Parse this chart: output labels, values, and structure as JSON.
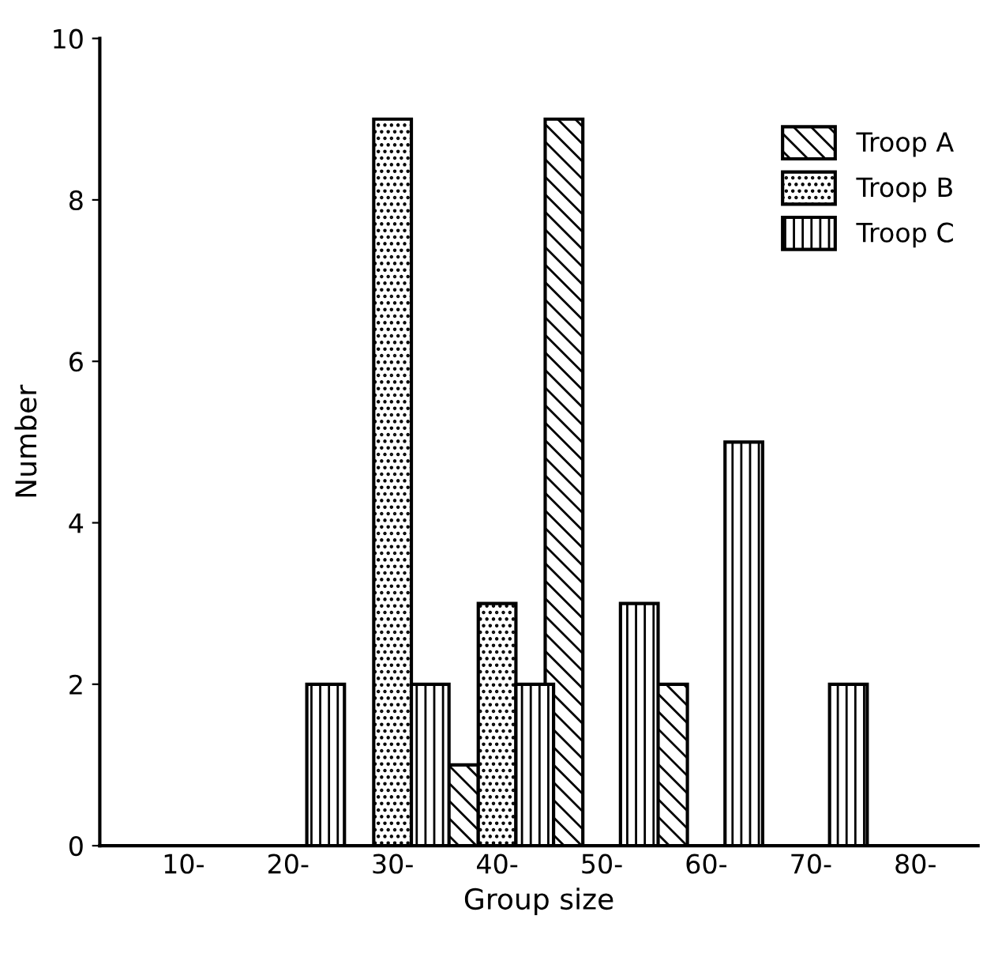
{
  "chart_data": {
    "type": "bar",
    "xlabel": "Group size",
    "ylabel": "Number",
    "categories": [
      "10-",
      "20-",
      "30-",
      "40-",
      "50-",
      "60-",
      "70-",
      "80-"
    ],
    "series": [
      {
        "name": "Troop A",
        "color": "#000000",
        "values": [
          null,
          null,
          null,
          1,
          9,
          2,
          null,
          null
        ]
      },
      {
        "name": "Troop B",
        "color": "#000000",
        "values": [
          null,
          null,
          9,
          3,
          null,
          null,
          null,
          null
        ]
      },
      {
        "name": "Troop C",
        "color": "#000000",
        "values": [
          null,
          2,
          2,
          2,
          3,
          5,
          2,
          null
        ]
      }
    ],
    "ylim": [
      0,
      10
    ],
    "yticks": [
      0,
      2,
      4,
      6,
      8,
      10
    ],
    "grid": false,
    "legend": "top right"
  }
}
